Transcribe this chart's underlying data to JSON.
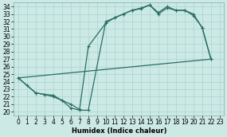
{
  "xlabel": "Humidex (Indice chaleur)",
  "xlim": [
    -0.5,
    23.5
  ],
  "ylim": [
    19.5,
    34.5
  ],
  "xticks": [
    0,
    1,
    2,
    3,
    4,
    5,
    6,
    7,
    8,
    9,
    10,
    11,
    12,
    13,
    14,
    15,
    16,
    17,
    18,
    19,
    20,
    21,
    22,
    23
  ],
  "yticks": [
    20,
    21,
    22,
    23,
    24,
    25,
    26,
    27,
    28,
    29,
    30,
    31,
    32,
    33,
    34
  ],
  "line_color": "#2a6e62",
  "bg_color": "#cce9e6",
  "grid_color": "#a8d5d0",
  "line1_x": [
    0,
    1,
    2,
    3,
    4,
    5,
    6,
    7,
    8,
    10,
    11,
    12,
    13,
    14,
    15,
    16,
    17,
    18,
    19,
    20,
    21,
    22
  ],
  "line1_y": [
    24.5,
    23.5,
    22.5,
    22.3,
    22.2,
    21.5,
    20.5,
    20.2,
    20.2,
    32.0,
    32.5,
    33.0,
    33.5,
    33.7,
    34.2,
    33.2,
    34.0,
    33.5,
    33.5,
    33.0,
    31.2,
    27.0
  ],
  "line2_x": [
    0,
    2,
    3,
    4,
    5,
    6,
    7,
    8,
    10,
    11,
    12,
    13,
    14,
    15,
    16,
    17,
    18,
    19,
    20,
    21,
    22
  ],
  "line2_y": [
    24.5,
    22.5,
    22.3,
    22.0,
    21.5,
    21.0,
    20.3,
    28.7,
    31.8,
    32.5,
    33.0,
    33.5,
    33.8,
    34.2,
    33.0,
    33.8,
    33.5,
    33.5,
    32.8,
    31.2,
    27.0
  ],
  "line3_x": [
    0,
    22
  ],
  "line3_y": [
    24.5,
    27.0
  ],
  "tick_fontsize": 5.5,
  "xlabel_fontsize": 6,
  "lw": 0.9,
  "marker_size": 3.5
}
